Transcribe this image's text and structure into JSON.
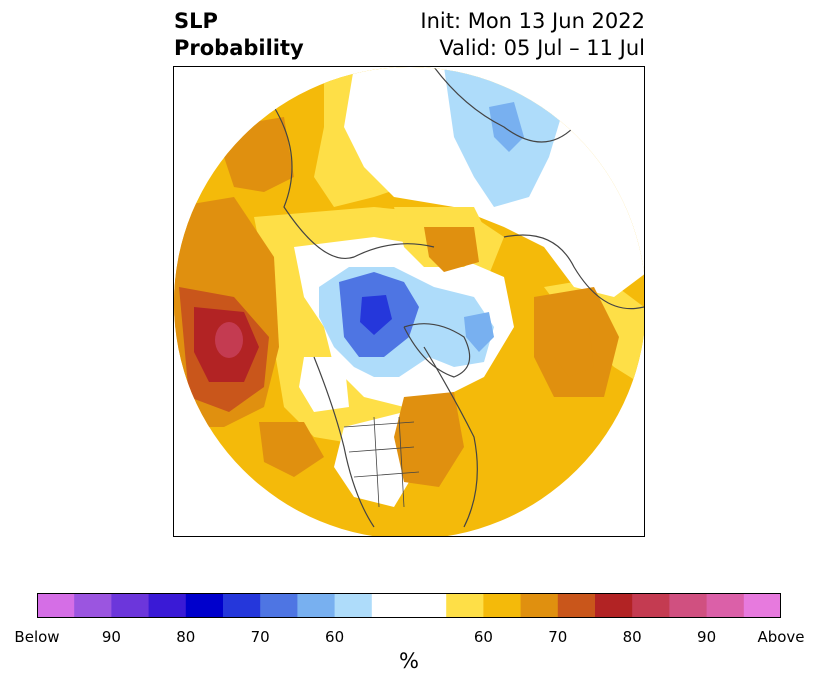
{
  "title": {
    "left_line1": "SLP",
    "left_line2": "Probability",
    "right_line1": "Init: Mon 13 Jun 2022",
    "right_line2": "Valid: 05 Jul – 11 Jul"
  },
  "colorbar": {
    "colors": [
      "#d56ee6",
      "#9b55e0",
      "#6c36db",
      "#3a1ad6",
      "#0000cc",
      "#2537db",
      "#4e75e3",
      "#78b0f0",
      "#aedcfa",
      "#ffffff",
      "#ffffff",
      "#fedf47",
      "#f4ba0a",
      "#e0900f",
      "#c9561b",
      "#b22324",
      "#c43b51",
      "#d05080",
      "#db60a8",
      "#e77ade"
    ],
    "labels": [
      "Below",
      "90",
      "80",
      "70",
      "60",
      "60",
      "70",
      "80",
      "90",
      "Above"
    ],
    "unit": "%"
  },
  "legend": {
    "below_color": "#d56ee6",
    "above_color": "#e77ade"
  }
}
